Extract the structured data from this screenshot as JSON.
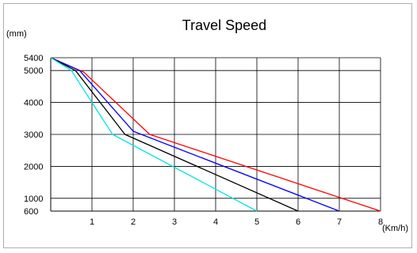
{
  "chart_data": {
    "type": "line",
    "title": "Travel Speed",
    "ylabel": "(mm)",
    "xlabel": "(Km/h)",
    "xlim": [
      0,
      8
    ],
    "ylim": [
      0,
      5400
    ],
    "x_ticks": [
      1,
      2,
      3,
      4,
      5,
      6,
      7,
      8
    ],
    "y_ticks": [
      600,
      1000,
      2000,
      3000,
      4000,
      5000,
      5400
    ],
    "grid": true,
    "series": [
      {
        "color": "#ff0000",
        "points": [
          [
            0,
            5400
          ],
          [
            0.8,
            4950
          ],
          [
            2.4,
            3000
          ],
          [
            8,
            600
          ]
        ]
      },
      {
        "color": "#0000ff",
        "points": [
          [
            0,
            5400
          ],
          [
            0.7,
            5000
          ],
          [
            2.0,
            3100
          ],
          [
            7,
            600
          ]
        ]
      },
      {
        "color": "#000000",
        "points": [
          [
            0,
            5400
          ],
          [
            0.6,
            5000
          ],
          [
            1.8,
            3000
          ],
          [
            6,
            600
          ]
        ]
      },
      {
        "color": "#00e5e5",
        "points": [
          [
            0,
            5400
          ],
          [
            0.5,
            5000
          ],
          [
            1.5,
            3000
          ],
          [
            5,
            600
          ]
        ]
      }
    ]
  }
}
